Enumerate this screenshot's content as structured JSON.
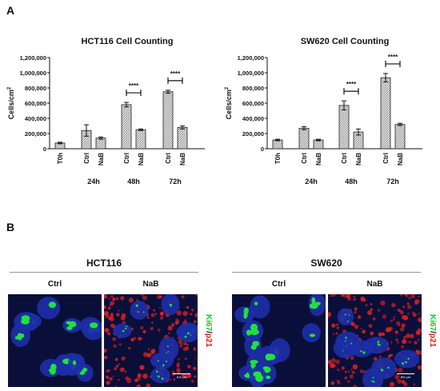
{
  "panel_labels": {
    "a": "A",
    "b": "B"
  },
  "colors": {
    "bar_fill": "#dcdcdc",
    "hatch": "#777777",
    "axis": "#111111",
    "nucleus": "#1d2fa8",
    "ki67": "#22e03c",
    "p21": "#e02020",
    "microscopy_bg": "#0a0f3a"
  },
  "chart_data": [
    {
      "type": "bar",
      "title": "HCT116 Cell Counting",
      "ylabel": "Cells/cm",
      "ylabel_sup": "2",
      "ylim": [
        0,
        1200000
      ],
      "yticks": [
        0,
        200000,
        400000,
        600000,
        800000,
        1000000,
        1200000
      ],
      "ytick_labels": [
        "0",
        "200,000",
        "400,000",
        "600,000",
        "800,000",
        "1,000,000",
        "1,200,000"
      ],
      "categories": [
        "T0h",
        "Ctrl",
        "NaB",
        "Ctrl",
        "NaB",
        "Ctrl",
        "NaB"
      ],
      "timepoints": [
        "24h",
        "48h",
        "72h"
      ],
      "values": [
        75000,
        240000,
        140000,
        580000,
        250000,
        750000,
        280000
      ],
      "errors": [
        10000,
        75000,
        15000,
        30000,
        10000,
        20000,
        20000
      ],
      "significance": [
        {
          "from": 3,
          "to": 4,
          "label": "****"
        },
        {
          "from": 5,
          "to": 6,
          "label": "****"
        }
      ]
    },
    {
      "type": "bar",
      "title": "SW620 Cell Counting",
      "ylabel": "Cells/cm",
      "ylabel_sup": "2",
      "ylim": [
        0,
        1200000
      ],
      "yticks": [
        0,
        200000,
        400000,
        600000,
        800000,
        1000000,
        1200000
      ],
      "ytick_labels": [
        "0",
        "200,000",
        "400,000",
        "600,000",
        "800,000",
        "1,000,000",
        "1,200,000"
      ],
      "categories": [
        "T0h",
        "Ctrl",
        "NaB",
        "Ctrl",
        "NaB",
        "Ctrl",
        "NaB"
      ],
      "timepoints": [
        "24h",
        "48h",
        "72h"
      ],
      "values": [
        115000,
        270000,
        115000,
        570000,
        220000,
        935000,
        320000
      ],
      "errors": [
        10000,
        20000,
        10000,
        60000,
        40000,
        55000,
        15000
      ],
      "significance": [
        {
          "from": 3,
          "to": 4,
          "label": "****"
        },
        {
          "from": 5,
          "to": 6,
          "label": "****"
        }
      ]
    }
  ],
  "panel_b": {
    "groups": [
      {
        "title": "HCT116",
        "conditions": [
          "Ctrl",
          "NaB"
        ]
      },
      {
        "title": "SW620",
        "conditions": [
          "Ctrl",
          "NaB"
        ]
      }
    ],
    "stain": {
      "ki67": "Ki67",
      "slash": "/",
      "p21": "p21"
    },
    "scale_bar": "8.5 μm"
  }
}
